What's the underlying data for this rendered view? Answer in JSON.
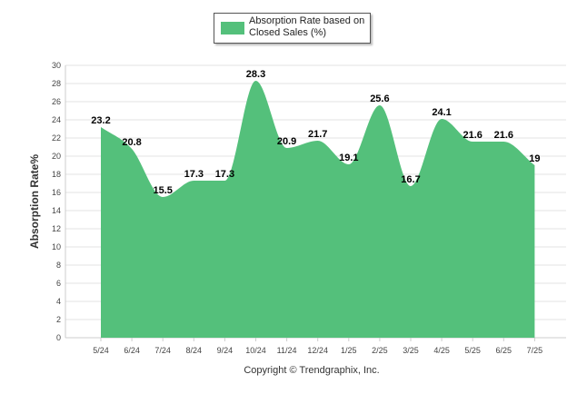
{
  "chart_data": {
    "type": "area",
    "categories": [
      "5/24",
      "6/24",
      "7/24",
      "8/24",
      "9/24",
      "10/24",
      "11/24",
      "12/24",
      "1/25",
      "2/25",
      "3/25",
      "4/25",
      "5/25",
      "6/25",
      "7/25"
    ],
    "series": [
      {
        "name": "Absorption Rate based on Closed Sales (%)",
        "values": [
          23.2,
          20.8,
          15.5,
          17.3,
          17.3,
          28.3,
          20.9,
          21.7,
          19.1,
          25.6,
          16.7,
          24.1,
          21.6,
          21.6,
          19
        ],
        "color": "#54c07b"
      }
    ],
    "data_labels": [
      "23.2",
      "20.8",
      "15.5",
      "17.3",
      "17.3",
      "28.3",
      "20.9",
      "21.7",
      "19.1",
      "25.6",
      "16.7",
      "24.1",
      "21.6",
      "21.6",
      "19"
    ],
    "ylabel": "Absorption Rate%",
    "xlabel": "",
    "ylim": [
      0,
      30
    ],
    "yticks": [
      0,
      2,
      4,
      6,
      8,
      10,
      12,
      14,
      16,
      18,
      20,
      22,
      24,
      26,
      28,
      30
    ],
    "grid": true,
    "legend_position": "top-center"
  },
  "legend": {
    "label": "Absorption Rate based on Closed Sales (%)"
  },
  "footer": {
    "credit": "Copyright © Trendgraphix, Inc."
  },
  "colors": {
    "series": "#54c07b",
    "grid": "#e3e3e3"
  }
}
